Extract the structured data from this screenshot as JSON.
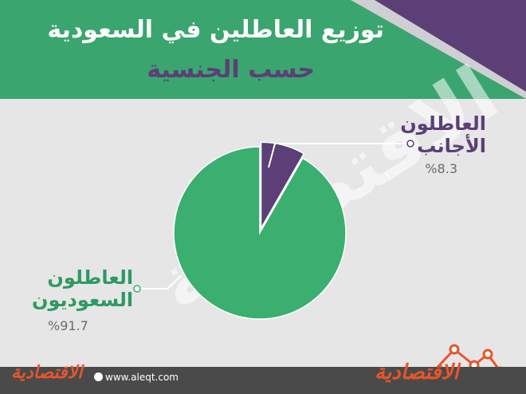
{
  "header": {
    "title": "توزيع العاطلين في السعودية",
    "subtitle": "حسب الجنسية"
  },
  "colors": {
    "header_green": "#3aa56e",
    "purple": "#5b3f76",
    "pie_green": "#3aaf6f",
    "pie_purple": "#5b3f76",
    "accent_orange": "#e8552a",
    "background": "#e6e6e7"
  },
  "chart_data": {
    "type": "pie",
    "title": "توزيع العاطلين في السعودية",
    "subtitle": "حسب الجنسية",
    "slices": [
      {
        "label": "العاطلون الأجانب",
        "value": 8.3,
        "display": "%8.3",
        "color": "#5b3f76"
      },
      {
        "label": "العاطلون السعوديون",
        "value": 91.7,
        "display": "%91.7",
        "color": "#3aaf6f"
      }
    ]
  },
  "labels": {
    "foreign_line1": "العاطلون",
    "foreign_line2": "الأجانب",
    "saudi_line1": "العاطلون",
    "saudi_line2": "السعوديون"
  },
  "watermark": "الاقتصادية",
  "footer": {
    "logo_left": "الاقتصادية",
    "url": "www.aleqt.com",
    "logo_right": "الاقتصادية"
  }
}
